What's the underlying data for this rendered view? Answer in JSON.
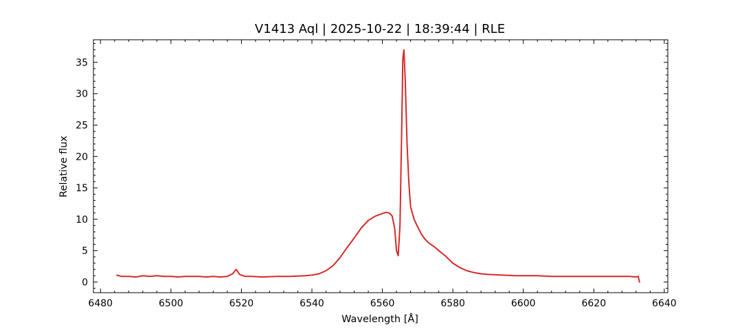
{
  "chart_data": {
    "type": "line",
    "title": "V1413 Aql | 2025-10-22 | 18:39:44 | RLE",
    "xlabel": "Wavelength [Å]",
    "ylabel": "Relative flux",
    "xlim": [
      6478,
      6641
    ],
    "ylim": [
      -1.7,
      38.6
    ],
    "xticks": [
      6480,
      6500,
      6520,
      6540,
      6560,
      6580,
      6600,
      6620,
      6640
    ],
    "xtick_labels": [
      "6480",
      "6500",
      "6520",
      "6540",
      "6560",
      "6580",
      "6600",
      "6620",
      "6640"
    ],
    "yticks": [
      0,
      5,
      10,
      15,
      20,
      25,
      30,
      35
    ],
    "ytick_labels": [
      "0",
      "5",
      "10",
      "15",
      "20",
      "25",
      "30",
      "35"
    ],
    "grid": false,
    "ticks_inward": true,
    "series": [
      {
        "color": "#d62728",
        "x": [
          6484.5,
          6486,
          6488,
          6490,
          6492,
          6494,
          6496,
          6498,
          6500,
          6502,
          6504,
          6506,
          6508,
          6510,
          6512,
          6514,
          6516,
          6517.5,
          6518.5,
          6519.5,
          6521,
          6523,
          6526,
          6530,
          6534,
          6538,
          6540,
          6542,
          6544,
          6546,
          6548,
          6550,
          6552,
          6554,
          6556,
          6558,
          6560,
          6561,
          6562,
          6562.8,
          6563.5,
          6564.0,
          6564.5,
          6565.0,
          6565.5,
          6565.8,
          6566.1,
          6566.5,
          6567.0,
          6567.5,
          6568.0,
          6569,
          6570,
          6571,
          6572,
          6573,
          6574,
          6575,
          6576,
          6578,
          6580,
          6582,
          6584,
          6586,
          6588,
          6590,
          6594,
          6598,
          6600,
          6604,
          6608,
          6612,
          6616,
          6620,
          6624,
          6628,
          6630,
          6632,
          6632.6,
          6633
        ],
        "y": [
          1.1,
          0.9,
          0.9,
          0.8,
          1.0,
          0.9,
          1.0,
          0.9,
          0.9,
          0.8,
          0.9,
          0.9,
          0.9,
          0.8,
          0.9,
          0.8,
          0.9,
          1.3,
          2.0,
          1.2,
          0.9,
          0.9,
          0.8,
          0.9,
          0.9,
          1.0,
          1.1,
          1.3,
          1.8,
          2.6,
          3.9,
          5.5,
          7.0,
          8.6,
          9.8,
          10.5,
          10.9,
          11.1,
          11.0,
          10.5,
          8.5,
          5.0,
          4.2,
          9.0,
          25.0,
          35.5,
          37.0,
          32.0,
          22.0,
          16.0,
          12.0,
          10.0,
          8.8,
          7.7,
          6.9,
          6.3,
          5.9,
          5.5,
          5.0,
          4.1,
          3.0,
          2.3,
          1.8,
          1.5,
          1.3,
          1.2,
          1.1,
          1.0,
          1.0,
          1.0,
          0.9,
          0.9,
          0.9,
          0.9,
          0.9,
          0.9,
          0.9,
          0.8,
          0.9,
          -0.1
        ]
      }
    ]
  }
}
